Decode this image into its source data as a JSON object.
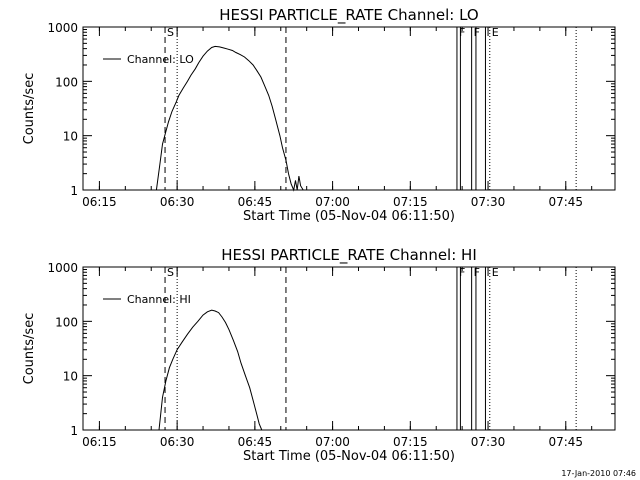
{
  "footer_date": "17-Jan-2010 07:46",
  "chart_data": [
    {
      "type": "line",
      "title": "HESSI PARTICLE_RATE Channel: LO",
      "xlabel": "Start Time (05-Nov-04 06:11:50)",
      "ylabel": "Counts/sec",
      "yscale": "log",
      "ylim": [
        1,
        1000
      ],
      "xlim": [
        "06:11:50",
        "07:54:30"
      ],
      "x_ticks": [
        "06:15",
        "06:30",
        "06:45",
        "07:00",
        "07:15",
        "07:30",
        "07:45"
      ],
      "y_ticks": [
        "1",
        "10",
        "100",
        "1000"
      ],
      "legend": {
        "location": "top-left",
        "entries": [
          "Channel: LO"
        ]
      },
      "series": [
        {
          "name": "Channel: LO",
          "x": [
            "06:26:00",
            "06:26:40",
            "06:27:10",
            "06:27:50",
            "06:28:20",
            "06:29:00",
            "06:29:50",
            "06:30:20",
            "06:31:10",
            "06:32:00",
            "06:32:40",
            "06:33:30",
            "06:34:10",
            "06:35:00",
            "06:35:50",
            "06:36:40",
            "06:37:20",
            "06:38:10",
            "06:39:00",
            "06:39:50",
            "06:40:40",
            "06:41:20",
            "06:42:10",
            "06:43:00",
            "06:43:50",
            "06:44:40",
            "06:45:20",
            "06:46:10",
            "06:46:50",
            "06:47:40",
            "06:48:20",
            "06:49:00",
            "06:49:50",
            "06:50:20",
            "06:51:00",
            "06:51:30",
            "06:52:00",
            "06:52:30",
            "06:52:50",
            "06:53:10",
            "06:53:30",
            "06:53:50",
            "06:54:20"
          ],
          "values": [
            1.0,
            3.0,
            7.0,
            12.0,
            18.0,
            28.0,
            42.0,
            55.0,
            75.0,
            100.0,
            130.0,
            170.0,
            220.0,
            290.0,
            360.0,
            420.0,
            440.0,
            430.0,
            410.0,
            390.0,
            370.0,
            340.0,
            310.0,
            280.0,
            240.0,
            200.0,
            160.0,
            120.0,
            85.0,
            55.0,
            35.0,
            20.0,
            10.0,
            6.0,
            3.5,
            2.0,
            1.3,
            1.0,
            1.5,
            1.0,
            1.8,
            1.2,
            1.0
          ]
        }
      ],
      "annotations": [
        {
          "label": "S",
          "time": "06:27:40",
          "line": "dashed"
        },
        {
          "label": "",
          "time": "06:30:00",
          "line": "dotted"
        },
        {
          "label": "",
          "time": "06:51:00",
          "line": "dashed"
        },
        {
          "label": "F",
          "time": "07:24:00",
          "line": "solid"
        },
        {
          "label": "",
          "time": "07:24:40",
          "line": "solid"
        },
        {
          "label": "F",
          "time": "07:26:50",
          "line": "solid"
        },
        {
          "label": "",
          "time": "07:27:40",
          "line": "solid"
        },
        {
          "label": "",
          "time": "07:29:30",
          "line": "solid"
        },
        {
          "label": "E",
          "time": "07:30:20",
          "line": "dotted"
        },
        {
          "label": "",
          "time": "07:47:00",
          "line": "dotted"
        }
      ]
    },
    {
      "type": "line",
      "title": "HESSI PARTICLE_RATE Channel: HI",
      "xlabel": "Start Time (05-Nov-04 06:11:50)",
      "ylabel": "Counts/sec",
      "yscale": "log",
      "ylim": [
        1,
        1000
      ],
      "xlim": [
        "06:11:50",
        "07:54:30"
      ],
      "x_ticks": [
        "06:15",
        "06:30",
        "06:45",
        "07:00",
        "07:15",
        "07:30",
        "07:45"
      ],
      "y_ticks": [
        "1",
        "10",
        "100",
        "1000"
      ],
      "legend": {
        "location": "top-left",
        "entries": [
          "Channel: HI"
        ]
      },
      "series": [
        {
          "name": "Channel: HI",
          "x": [
            "06:26:30",
            "06:27:10",
            "06:27:50",
            "06:28:30",
            "06:29:10",
            "06:30:00",
            "06:31:00",
            "06:32:00",
            "06:33:00",
            "06:34:00",
            "06:35:00",
            "06:35:50",
            "06:36:40",
            "06:37:20",
            "06:38:00",
            "06:38:40",
            "06:39:20",
            "06:40:00",
            "06:40:50",
            "06:41:40",
            "06:42:20",
            "06:43:10",
            "06:44:00",
            "06:44:40",
            "06:45:20",
            "06:45:50",
            "06:46:20"
          ],
          "values": [
            1.0,
            4.0,
            8.0,
            14.0,
            20.0,
            30.0,
            42.0,
            58.0,
            78.0,
            100.0,
            130.0,
            150.0,
            160.0,
            155.0,
            145.0,
            120.0,
            95.0,
            70.0,
            45.0,
            28.0,
            17.0,
            10.0,
            6.0,
            3.5,
            2.0,
            1.3,
            1.0
          ]
        }
      ],
      "annotations": [
        {
          "label": "S",
          "time": "06:27:40",
          "line": "dashed"
        },
        {
          "label": "",
          "time": "06:30:00",
          "line": "dotted"
        },
        {
          "label": "",
          "time": "06:51:00",
          "line": "dashed"
        },
        {
          "label": "F",
          "time": "07:24:00",
          "line": "solid"
        },
        {
          "label": "",
          "time": "07:24:40",
          "line": "solid"
        },
        {
          "label": "F",
          "time": "07:26:50",
          "line": "solid"
        },
        {
          "label": "",
          "time": "07:27:40",
          "line": "solid"
        },
        {
          "label": "",
          "time": "07:29:30",
          "line": "solid"
        },
        {
          "label": "E",
          "time": "07:30:20",
          "line": "dotted"
        },
        {
          "label": "",
          "time": "07:47:00",
          "line": "dotted"
        }
      ]
    }
  ]
}
